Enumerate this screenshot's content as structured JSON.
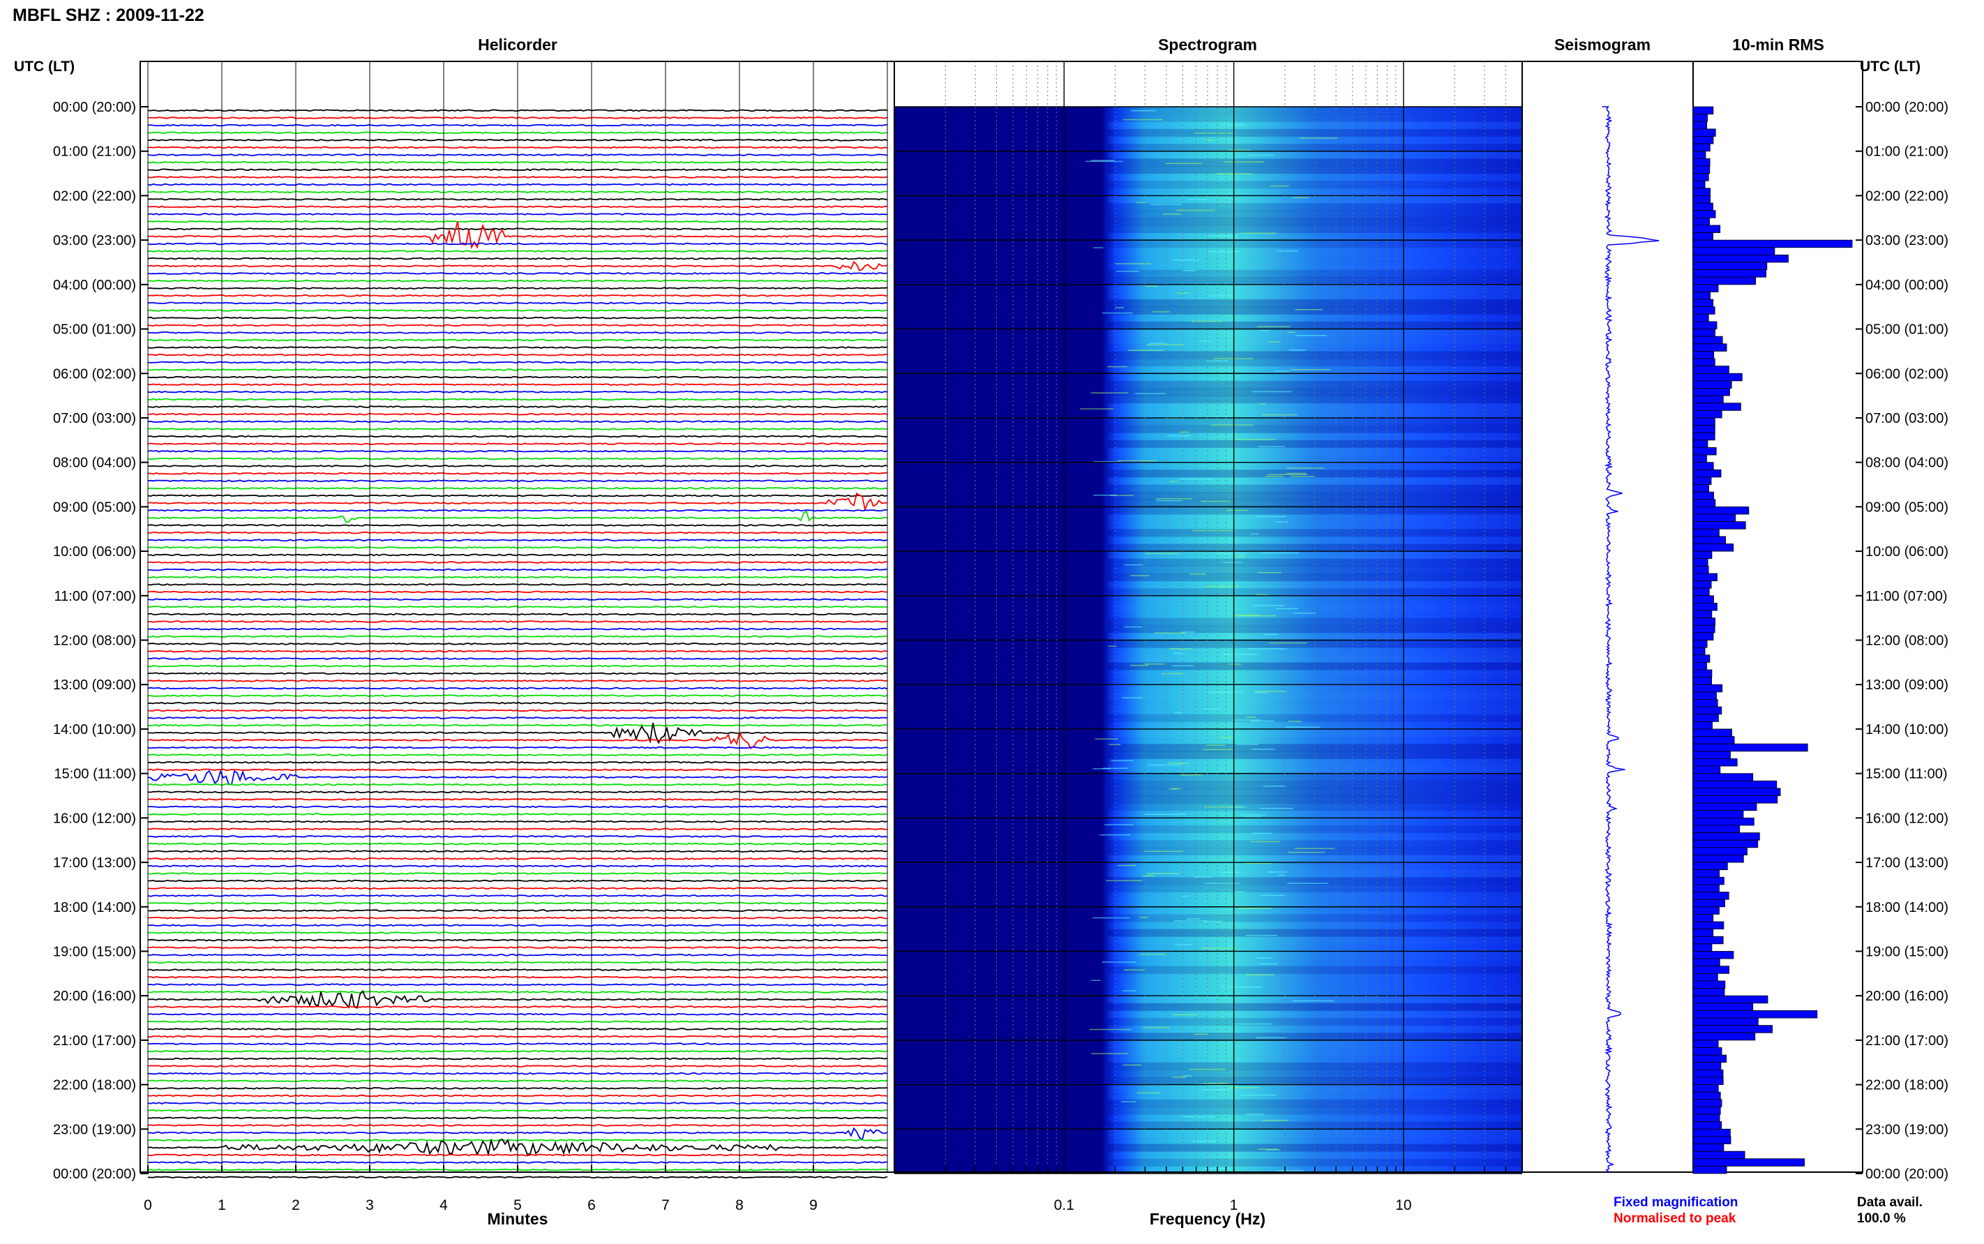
{
  "page_title": "MBFL SHZ : 2009-11-22",
  "left_axis_header": "UTC (LT)",
  "right_axis_header": "UTC (LT)",
  "legend": {
    "fixed": "Fixed magnification",
    "normalised": "Normalised to peak",
    "data_avail_label": "Data avail.",
    "data_avail_value": "100.0 %"
  },
  "colors": {
    "black": "#000000",
    "red": "#ff0000",
    "blue": "#0000ff",
    "green": "#00e000",
    "grid": "#000000",
    "spec_low": "#00008c",
    "spec_mid": "#0a3cff",
    "spec_high": "#40e0e0"
  },
  "chart_data": [
    {
      "type": "line",
      "title": "Helicorder",
      "xlabel": "Minutes",
      "xlim": [
        0,
        10
      ],
      "x_ticks": [
        "0",
        "1",
        "2",
        "3",
        "4",
        "5",
        "6",
        "7",
        "8",
        "9"
      ],
      "rows_per_hour": 6,
      "row_color_cycle": [
        "black",
        "red",
        "blue",
        "green"
      ],
      "y_tick_labels": [
        "00:00 (20:00)",
        "01:00 (21:00)",
        "02:00 (22:00)",
        "03:00 (23:00)",
        "04:00 (00:00)",
        "05:00 (01:00)",
        "06:00 (02:00)",
        "07:00 (03:00)",
        "08:00 (04:00)",
        "09:00 (05:00)",
        "10:00 (06:00)",
        "11:00 (07:00)",
        "12:00 (08:00)",
        "13:00 (09:00)",
        "14:00 (10:00)",
        "15:00 (11:00)",
        "16:00 (12:00)",
        "17:00 (13:00)",
        "18:00 (14:00)",
        "19:00 (15:00)",
        "20:00 (16:00)",
        "21:00 (17:00)",
        "22:00 (18:00)",
        "23:00 (19:00)",
        "00:00 (20:00)"
      ],
      "bursts": [
        {
          "row": 17,
          "start_min": 3.8,
          "end_min": 4.8,
          "amp": 0.9
        },
        {
          "row": 21,
          "start_min": 9.3,
          "end_min": 9.9,
          "amp": 0.4
        },
        {
          "row": 53,
          "start_min": 9.2,
          "end_min": 9.9,
          "amp": 0.5
        },
        {
          "row": 55,
          "start_min": 2.6,
          "end_min": 2.8,
          "amp": 0.6
        },
        {
          "row": 55,
          "start_min": 8.8,
          "end_min": 8.95,
          "amp": 0.7
        },
        {
          "row": 84,
          "start_min": 6.3,
          "end_min": 7.5,
          "amp": 0.55
        },
        {
          "row": 85,
          "start_min": 7.6,
          "end_min": 8.5,
          "amp": 0.45
        },
        {
          "row": 90,
          "start_min": 0,
          "end_min": 2.0,
          "amp": 0.4
        },
        {
          "row": 120,
          "start_min": 1.5,
          "end_min": 3.8,
          "amp": 0.45
        },
        {
          "row": 138,
          "start_min": 9.4,
          "end_min": 9.9,
          "amp": 0.35
        },
        {
          "row": 140,
          "start_min": 1.0,
          "end_min": 8.5,
          "amp": 0.35
        }
      ]
    },
    {
      "type": "heatmap",
      "title": "Spectrogram",
      "xlabel": "Frequency (Hz)",
      "x_scale": "log",
      "xlim": [
        0.01,
        50
      ],
      "x_ticks": [
        0.1,
        1,
        10
      ],
      "x_tick_labels": [
        "0.1",
        "1",
        "10"
      ],
      "low_freq_cutoff_hz": 0.2,
      "peak_band_hz": [
        0.3,
        3
      ]
    },
    {
      "type": "line",
      "title": "Seismogram",
      "spikes": [
        {
          "hour": 3.0,
          "amp": 0.95
        },
        {
          "hour": 8.7,
          "amp": 0.25
        },
        {
          "hour": 9.1,
          "amp": 0.2
        },
        {
          "hour": 14.2,
          "amp": 0.25
        },
        {
          "hour": 14.9,
          "amp": 0.3
        },
        {
          "hour": 15.8,
          "amp": 0.2
        },
        {
          "hour": 20.4,
          "amp": 0.3
        },
        {
          "hour": 23.8,
          "amp": 0.15
        }
      ]
    },
    {
      "type": "bar",
      "title": "10-min RMS",
      "orientation": "horizontal",
      "bins_per_hour": 6,
      "hourly_rms": [
        0.12,
        0.1,
        0.14,
        0.55,
        0.13,
        0.18,
        0.25,
        0.12,
        0.14,
        0.22,
        0.12,
        0.12,
        0.1,
        0.15,
        0.22,
        0.45,
        0.35,
        0.2,
        0.16,
        0.2,
        0.4,
        0.18,
        0.15,
        0.25
      ],
      "peaks": [
        {
          "bin": 18,
          "value": 1.0
        },
        {
          "bin": 54,
          "value": 0.35
        },
        {
          "bin": 56,
          "value": 0.33
        },
        {
          "bin": 86,
          "value": 0.72
        },
        {
          "bin": 93,
          "value": 0.53
        },
        {
          "bin": 122,
          "value": 0.78
        },
        {
          "bin": 142,
          "value": 0.7
        }
      ]
    }
  ]
}
